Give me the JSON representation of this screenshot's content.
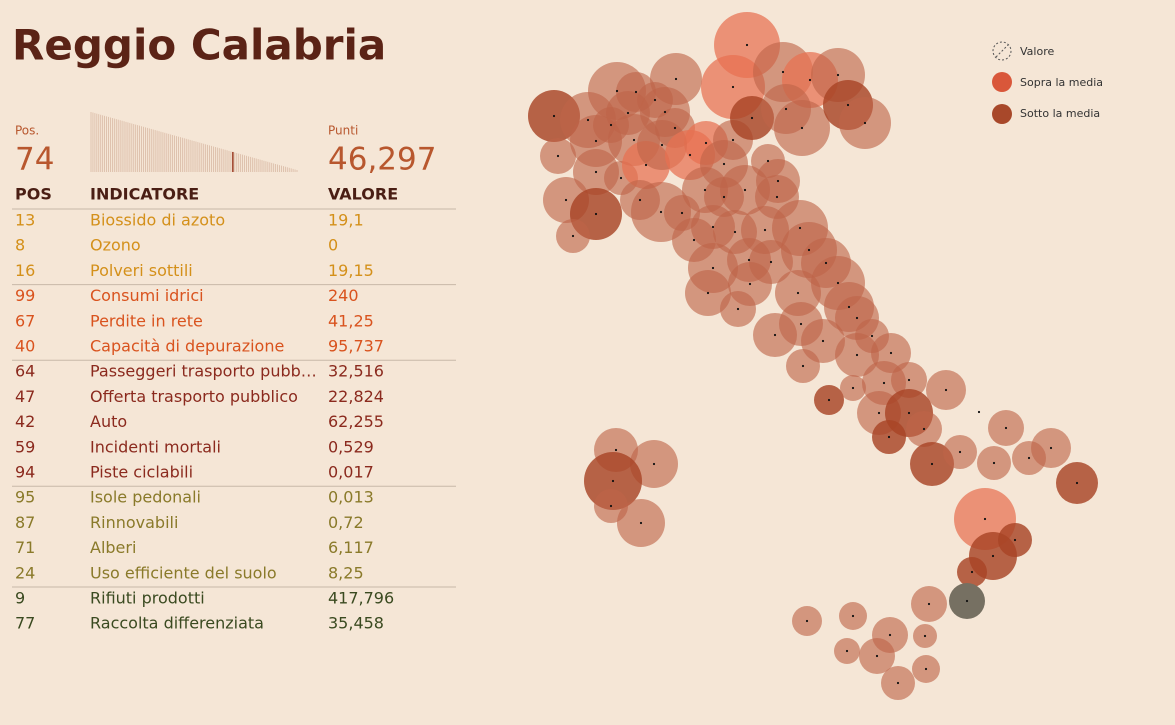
{
  "header": {
    "title": "Reggio Calabria"
  },
  "rank": {
    "label": "Pos.",
    "value": 74
  },
  "points": {
    "label": "Punti",
    "value": "46,297"
  },
  "table": {
    "headers": [
      "POS",
      "INDICATORE",
      "VALORE"
    ],
    "groups": [
      {
        "color": "#d4901a",
        "rows": [
          [
            13,
            "Biossido di azoto",
            "19,1"
          ],
          [
            8,
            "Ozono",
            "0"
          ],
          [
            16,
            "Polveri sottili",
            "19,15"
          ]
        ]
      },
      {
        "color": "#d9531e",
        "rows": [
          [
            99,
            "Consumi idrici",
            "240"
          ],
          [
            67,
            "Perdite in rete",
            "41,25"
          ],
          [
            40,
            "Capacità di depurazione",
            "95,737"
          ]
        ]
      },
      {
        "color": "#8b2a1e",
        "rows": [
          [
            64,
            "Passeggeri trasporto pubb…",
            "32,516"
          ],
          [
            47,
            "Offerta trasporto pubblico",
            "22,824"
          ],
          [
            42,
            "Auto",
            "62,255"
          ],
          [
            59,
            "Incidenti mortali",
            "0,529"
          ],
          [
            94,
            "Piste ciclabili",
            "0,017"
          ]
        ]
      },
      {
        "color": "#8a7a2a",
        "rows": [
          [
            95,
            "Isole pedonali",
            "0,013"
          ],
          [
            87,
            "Rinnovabili",
            "0,72"
          ],
          [
            71,
            "Alberi",
            "6,117"
          ],
          [
            24,
            "Uso efficiente del suolo",
            "8,25"
          ]
        ]
      },
      {
        "color": "#3a4a20",
        "rows": [
          [
            9,
            "Rifiuti prodotti",
            "417,796"
          ],
          [
            77,
            "Raccolta differenziata",
            "35,458"
          ]
        ]
      }
    ]
  },
  "legend": {
    "items": [
      "Valore",
      "Sopra la media",
      "Sotto la media"
    ]
  }
}
